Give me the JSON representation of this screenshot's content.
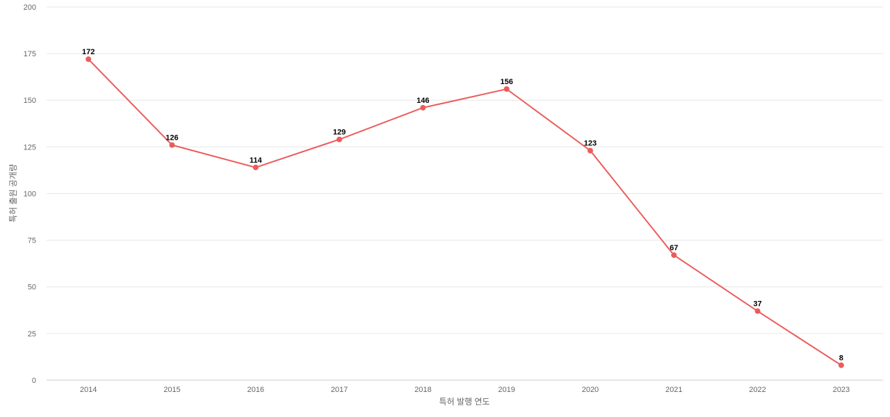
{
  "chart_data": {
    "type": "line",
    "x_label": "특허 발행 연도",
    "y_label": "특허 출원 공개량",
    "categories": [
      "2014",
      "2015",
      "2016",
      "2017",
      "2018",
      "2019",
      "2020",
      "2021",
      "2022",
      "2023"
    ],
    "values": [
      172,
      126,
      114,
      129,
      146,
      156,
      123,
      67,
      37,
      8
    ],
    "color": "#ec5b5b",
    "ylim": [
      0,
      200
    ],
    "yticks": [
      0,
      25,
      50,
      75,
      100,
      125,
      150,
      175,
      200
    ],
    "grid": true
  }
}
